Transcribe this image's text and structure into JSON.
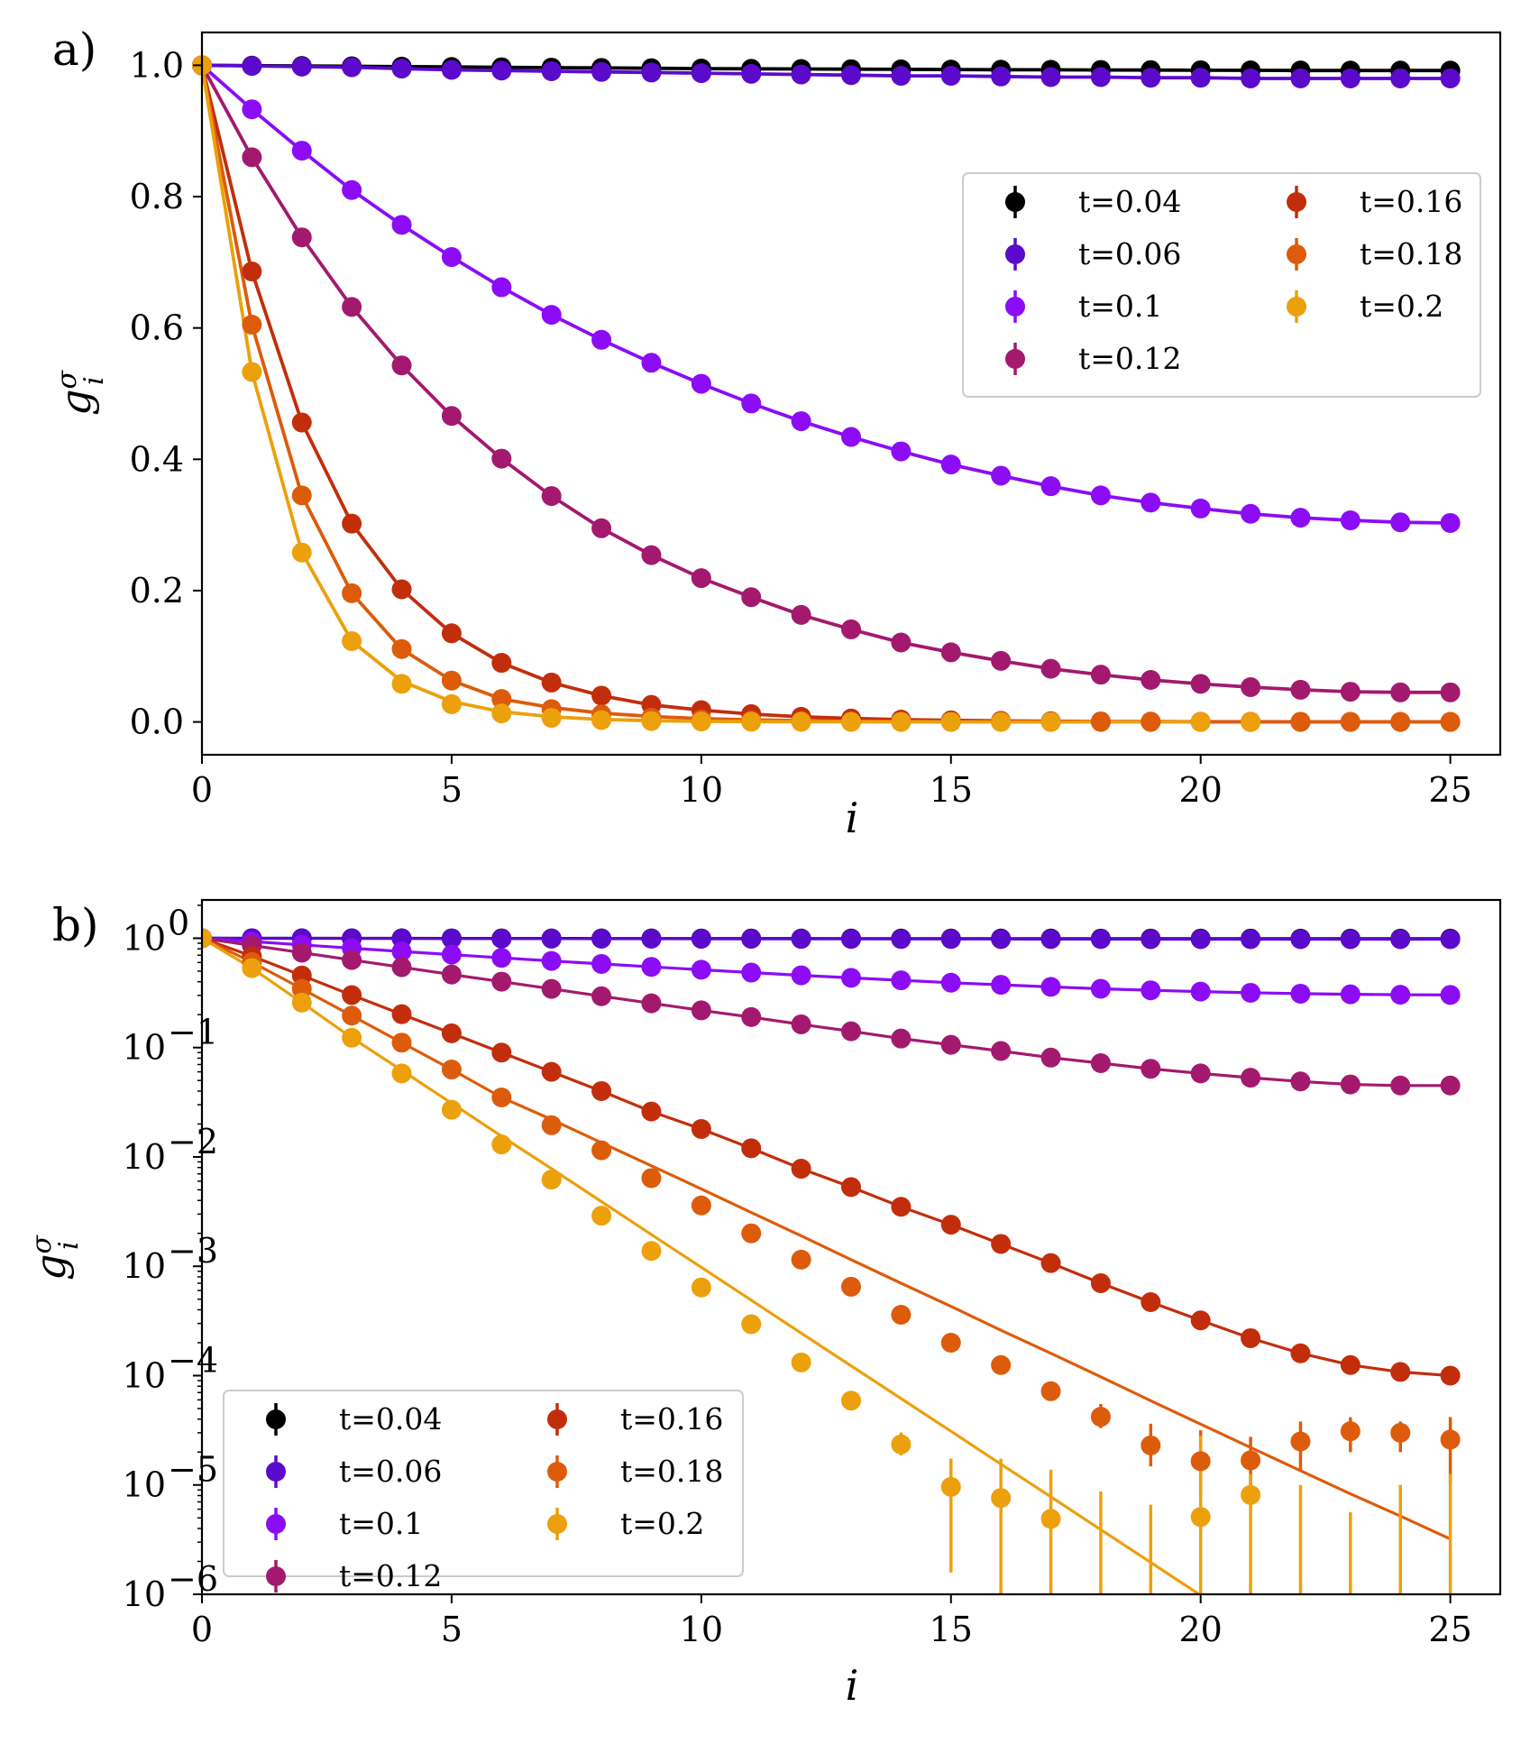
{
  "chart_data": [
    {
      "type": "line",
      "panel": "a)",
      "yscale": "linear",
      "xlabel": "i",
      "ylabel": "g_i^σ",
      "xlim": [
        0,
        26
      ],
      "ylim": [
        -0.05,
        1.05
      ],
      "xticks": [
        0,
        5,
        10,
        15,
        20,
        25
      ],
      "xtick_labels": [
        "0",
        "5",
        "10",
        "15",
        "20",
        "25"
      ],
      "yticks": [
        0.0,
        0.2,
        0.4,
        0.6,
        0.8,
        1.0
      ],
      "ytick_labels": [
        "0.0",
        "0.2",
        "0.4",
        "0.6",
        "0.8",
        "1.0"
      ],
      "legend_position": "upper-right",
      "legend_columns": 2,
      "x": [
        0,
        1,
        2,
        3,
        4,
        5,
        6,
        7,
        8,
        9,
        10,
        11,
        12,
        13,
        14,
        15,
        16,
        17,
        18,
        19,
        20,
        21,
        22,
        23,
        24,
        25
      ],
      "series": [
        {
          "name": "t=0.04",
          "color": "#000000",
          "values": [
            1.0,
            0.9995,
            0.999,
            0.9985,
            0.998,
            0.9975,
            0.997,
            0.9965,
            0.996,
            0.9955,
            0.995,
            0.9947,
            0.9944,
            0.9941,
            0.9938,
            0.9935,
            0.9933,
            0.9931,
            0.9929,
            0.9927,
            0.9925,
            0.9923,
            0.9921,
            0.992,
            0.992,
            0.992
          ],
          "fit": [
            1.0,
            0.9995,
            0.999,
            0.9985,
            0.998,
            0.9975,
            0.997,
            0.9965,
            0.996,
            0.9955,
            0.995,
            0.9947,
            0.9944,
            0.9941,
            0.9938,
            0.9935,
            0.9933,
            0.9931,
            0.9929,
            0.9927,
            0.9925,
            0.9923,
            0.9921,
            0.992,
            0.992,
            0.992
          ]
        },
        {
          "name": "t=0.06",
          "color": "#5b0acc",
          "values": [
            1.0,
            0.999,
            0.998,
            0.997,
            0.995,
            0.993,
            0.992,
            0.991,
            0.99,
            0.989,
            0.988,
            0.987,
            0.986,
            0.985,
            0.984,
            0.984,
            0.983,
            0.982,
            0.982,
            0.981,
            0.981,
            0.98,
            0.98,
            0.98,
            0.98,
            0.98
          ],
          "fit": [
            1.0,
            0.999,
            0.998,
            0.997,
            0.995,
            0.993,
            0.992,
            0.991,
            0.99,
            0.989,
            0.988,
            0.987,
            0.986,
            0.985,
            0.984,
            0.984,
            0.983,
            0.982,
            0.982,
            0.981,
            0.981,
            0.98,
            0.98,
            0.98,
            0.98,
            0.98
          ]
        },
        {
          "name": "t=0.1",
          "color": "#8b0cf5",
          "values": [
            1.0,
            0.933,
            0.87,
            0.81,
            0.757,
            0.708,
            0.662,
            0.62,
            0.582,
            0.547,
            0.515,
            0.485,
            0.458,
            0.434,
            0.412,
            0.392,
            0.375,
            0.359,
            0.345,
            0.334,
            0.325,
            0.317,
            0.311,
            0.307,
            0.304,
            0.303
          ],
          "fit": [
            1.0,
            0.933,
            0.87,
            0.81,
            0.757,
            0.708,
            0.662,
            0.62,
            0.582,
            0.547,
            0.515,
            0.485,
            0.458,
            0.434,
            0.412,
            0.392,
            0.375,
            0.359,
            0.345,
            0.334,
            0.325,
            0.317,
            0.311,
            0.307,
            0.304,
            0.303
          ]
        },
        {
          "name": "t=0.12",
          "color": "#a3196e",
          "values": [
            1.0,
            0.86,
            0.738,
            0.632,
            0.543,
            0.466,
            0.401,
            0.344,
            0.295,
            0.254,
            0.219,
            0.19,
            0.163,
            0.141,
            0.121,
            0.106,
            0.093,
            0.081,
            0.072,
            0.064,
            0.058,
            0.053,
            0.049,
            0.046,
            0.045,
            0.045
          ],
          "fit": [
            1.0,
            0.86,
            0.738,
            0.632,
            0.543,
            0.466,
            0.401,
            0.344,
            0.295,
            0.254,
            0.219,
            0.19,
            0.163,
            0.141,
            0.121,
            0.106,
            0.093,
            0.081,
            0.072,
            0.064,
            0.058,
            0.053,
            0.049,
            0.046,
            0.045,
            0.045
          ]
        },
        {
          "name": "t=0.16",
          "color": "#c22e0c",
          "values": [
            1.0,
            0.686,
            0.456,
            0.302,
            0.202,
            0.135,
            0.09,
            0.06,
            0.04,
            0.026,
            0.018,
            0.012,
            0.0078,
            0.0053,
            0.0035,
            0.0024,
            0.0016,
            0.00107,
            0.0007,
            0.00047,
            0.00032,
            0.00022,
            0.00016,
            0.000125,
            0.000108,
            0.0001
          ],
          "fit": [
            1.0,
            0.686,
            0.456,
            0.302,
            0.202,
            0.135,
            0.09,
            0.06,
            0.04,
            0.026,
            0.018,
            0.012,
            0.0078,
            0.0053,
            0.0035,
            0.0024,
            0.0016,
            0.00107,
            0.0007,
            0.00047,
            0.00032,
            0.00022,
            0.00016,
            0.000125,
            0.000108,
            0.0001
          ]
        },
        {
          "name": "t=0.18",
          "color": "#dc5c0c",
          "values": [
            1.0,
            0.605,
            0.345,
            0.196,
            0.111,
            0.063,
            0.035,
            0.0195,
            0.0115,
            0.0064,
            0.0036,
            0.002,
            0.00115,
            0.00065,
            0.00036,
            0.0002,
            0.000125,
            7.2e-05,
            4.2e-05,
            2.3e-05,
            1.65e-05,
            1.68e-05,
            2.5e-05,
            3.1e-05,
            3e-05,
            2.6e-05
          ],
          "fit": [
            1.0,
            0.605,
            0.345,
            0.196,
            0.111,
            0.063,
            0.035,
            0.022,
            0.0135,
            0.0083,
            0.0051,
            0.0031,
            0.0019,
            0.00115,
            0.0007,
            0.00043,
            0.00026,
            0.00016,
            9.75e-05,
            5.9e-05,
            3.6e-05,
            2.2e-05,
            1.35e-05,
            8.3e-06,
            5.2e-06,
            3.2e-06
          ],
          "err_low_log": [
            null,
            null,
            null,
            null,
            null,
            null,
            null,
            null,
            null,
            null,
            null,
            null,
            null,
            null,
            null,
            null,
            null,
            null,
            -4.48,
            -4.83,
            -5.1,
            -5.1,
            -4.87,
            -4.7,
            -4.7,
            -4.98
          ],
          "err_high_log": [
            null,
            null,
            null,
            null,
            null,
            null,
            null,
            null,
            null,
            null,
            null,
            null,
            null,
            null,
            null,
            null,
            null,
            null,
            -4.26,
            -4.44,
            -4.5,
            -4.56,
            -4.42,
            -4.38,
            -4.42,
            -4.38
          ]
        },
        {
          "name": "t=0.2",
          "color": "#eca00c",
          "values": [
            1.0,
            0.533,
            0.258,
            0.123,
            0.058,
            0.027,
            0.013,
            0.0062,
            0.0029,
            0.00138,
            0.00064,
            0.000295,
            0.000132,
            5.9e-05,
            2.35e-05,
            9.6e-06,
            7.6e-06,
            4.9e-06,
            null,
            null,
            5.1e-06,
            8.1e-06,
            null,
            null,
            null,
            null
          ],
          "fit": [
            1.0,
            0.533,
            0.258,
            0.123,
            0.062,
            0.031,
            0.0155,
            0.0078,
            0.0039,
            0.00195,
            0.00098,
            0.00049,
            0.000245,
            0.000123,
            6.17e-05,
            3.1e-05,
            1.55e-05,
            7.8e-06,
            3.9e-06,
            1.96e-06,
            9.8e-07,
            null,
            null,
            null,
            null,
            null
          ],
          "err_low_log": [
            null,
            null,
            null,
            null,
            null,
            null,
            null,
            null,
            null,
            null,
            null,
            null,
            null,
            null,
            -4.73,
            -5.8,
            -6.0,
            -6.0,
            -6.0,
            -6.0,
            -6.0,
            -6.0,
            -6.0,
            -6.0,
            -6.0,
            -6.0
          ],
          "err_high_log": [
            null,
            null,
            null,
            null,
            null,
            null,
            null,
            null,
            null,
            null,
            null,
            null,
            null,
            null,
            -4.52,
            -4.76,
            -4.76,
            -4.86,
            -5.06,
            -5.18,
            -4.55,
            -4.9,
            -5.0,
            -5.25,
            -5.0,
            -4.9
          ]
        }
      ]
    },
    {
      "type": "line",
      "panel": "b)",
      "yscale": "log",
      "xlabel": "i",
      "ylabel": "g_i^σ",
      "xlim": [
        0,
        26
      ],
      "ylim_log10": [
        -6.0,
        0.35
      ],
      "xticks": [
        0,
        5,
        10,
        15,
        20,
        25
      ],
      "xtick_labels": [
        "0",
        "5",
        "10",
        "15",
        "20",
        "25"
      ],
      "yticks_log10": [
        -6,
        -5,
        -4,
        -3,
        -2,
        -1,
        0
      ],
      "ytick_base": "10",
      "ytick_exponents": [
        "−6",
        "−5",
        "−4",
        "−3",
        "−2",
        "−1",
        "0"
      ],
      "legend_position": "lower-left",
      "legend_columns": 2
    }
  ],
  "figure": {
    "panel_a_label": "a)",
    "panel_b_label": "b)",
    "xlabel": "i",
    "ylabel_main": "g",
    "ylabel_sub": "i",
    "ylabel_sup": "σ"
  }
}
